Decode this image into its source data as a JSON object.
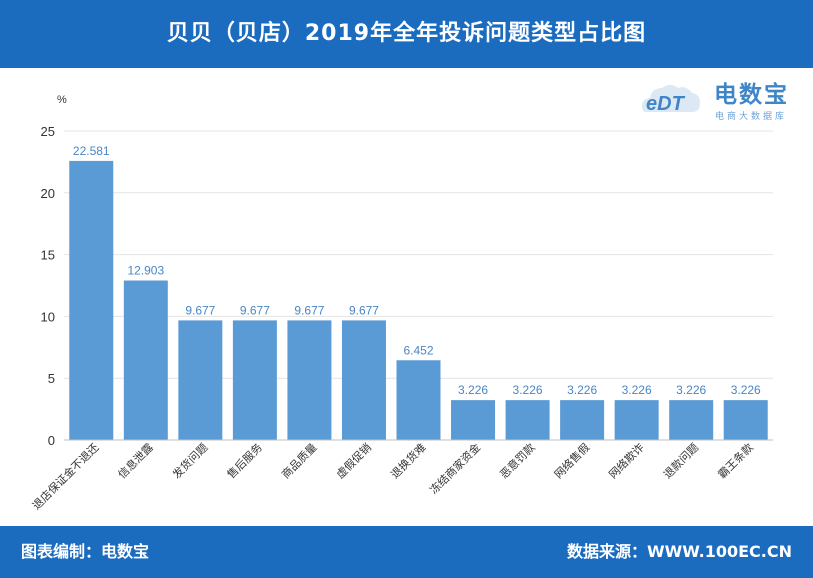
{
  "header": {
    "title": "贝贝（贝店）2019年全年投诉问题类型占比图"
  },
  "footer": {
    "left_text": "图表编制：电数宝",
    "right_text": "数据来源：WWW.100EC.CN"
  },
  "logo": {
    "brand": "电数宝",
    "tagline": "电商大数据库",
    "mark": "eDT"
  },
  "colors": {
    "header_bg": "#1b6bbf",
    "bar": "#5b9bd5",
    "label": "#4a86c5",
    "grid": "#e4e4e4"
  },
  "chart_data": {
    "type": "bar",
    "ylabel": "%",
    "ylim": [
      0,
      25
    ],
    "yticks": [
      0,
      5,
      10,
      15,
      20,
      25
    ],
    "categories": [
      "退店保证金不退还",
      "信息泄露",
      "发货问题",
      "售后服务",
      "商品质量",
      "虚假促销",
      "退换货难",
      "冻结商家资金",
      "恶意罚款",
      "网络售假",
      "网络欺诈",
      "退款问题",
      "霸王条款"
    ],
    "values": [
      22.581,
      12.903,
      9.677,
      9.677,
      9.677,
      9.677,
      6.452,
      3.226,
      3.226,
      3.226,
      3.226,
      3.226,
      3.226
    ],
    "value_labels": [
      "22.581",
      "12.903",
      "9.677",
      "9.677",
      "9.677",
      "9.677",
      "6.452",
      "3.226",
      "3.226",
      "3.226",
      "3.226",
      "3.226",
      "3.226"
    ],
    "grid": true
  }
}
